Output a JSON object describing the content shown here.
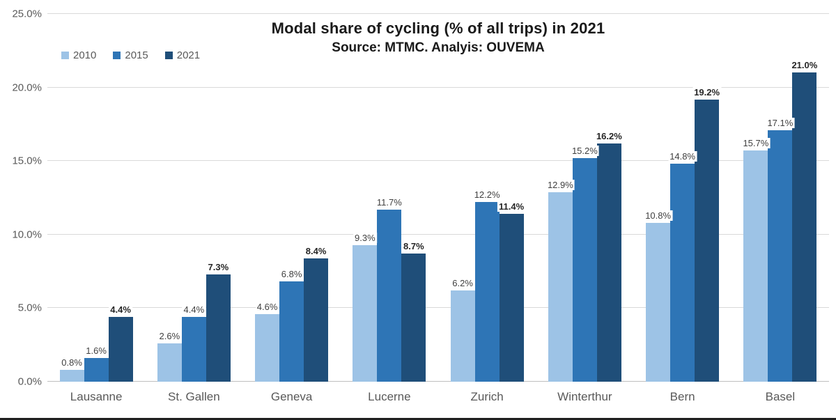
{
  "chart_data": {
    "type": "bar",
    "title": "Modal share of cycling (% of all trips) in 2021",
    "subtitle": "Source: MTMC. Analyis: OUVEMA",
    "categories": [
      "Lausanne",
      "St. Gallen",
      "Geneva",
      "Lucerne",
      "Zurich",
      "Winterthur",
      "Bern",
      "Basel"
    ],
    "series": [
      {
        "name": "2010",
        "color": "#9DC3E6",
        "bold_labels": false,
        "values": [
          0.8,
          2.6,
          4.6,
          9.3,
          6.2,
          12.9,
          10.8,
          15.7
        ]
      },
      {
        "name": "2015",
        "color": "#2E75B6",
        "bold_labels": false,
        "values": [
          1.6,
          4.4,
          6.8,
          11.7,
          12.2,
          15.2,
          14.8,
          17.1
        ]
      },
      {
        "name": "2021",
        "color": "#1F4E79",
        "bold_labels": true,
        "values": [
          4.4,
          7.3,
          8.4,
          8.7,
          11.4,
          16.2,
          19.2,
          21.0
        ]
      }
    ],
    "ylim": [
      0,
      25
    ],
    "ytick_step": 5,
    "ytick_labels": [
      "0.0%",
      "5.0%",
      "10.0%",
      "15.0%",
      "20.0%",
      "25.0%"
    ],
    "data_label_suffix": "%",
    "grid": true,
    "legend_position": "top-left",
    "colors": {
      "gridline": "#d9d9d9",
      "baseline": "#bfbfbf",
      "axis_text": "#595959",
      "title_text": "#1a1a1a",
      "bottom_strip": "#1f1f1f"
    }
  }
}
